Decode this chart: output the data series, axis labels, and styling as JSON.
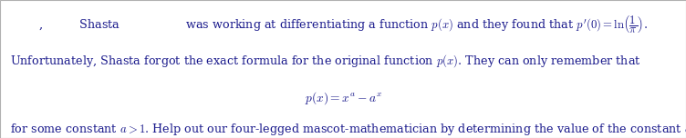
{
  "background_color": "#ffffff",
  "border_color": "#b0b0b0",
  "text_color": "#1a1a8c",
  "figsize": [
    7.52,
    1.52
  ],
  "dpi": 100,
  "fontsize": 9.2,
  "line1_prefix": ",          Shasta                  was working at differentiating a function $p(x)$ and they found that $p^{\\prime}(0) = \\ln\\!\\left(\\dfrac{1}{\\pi}\\right)$.",
  "line2": "Unfortunately, Shasta forgot the exact formula for the original function $p(x)$. They can only remember that",
  "line3": "$p(x) = x^a - a^x$",
  "line4": "for some constant $a > 1$. Help out our four-legged mascot-mathematician by determining the value of the constant $a$."
}
